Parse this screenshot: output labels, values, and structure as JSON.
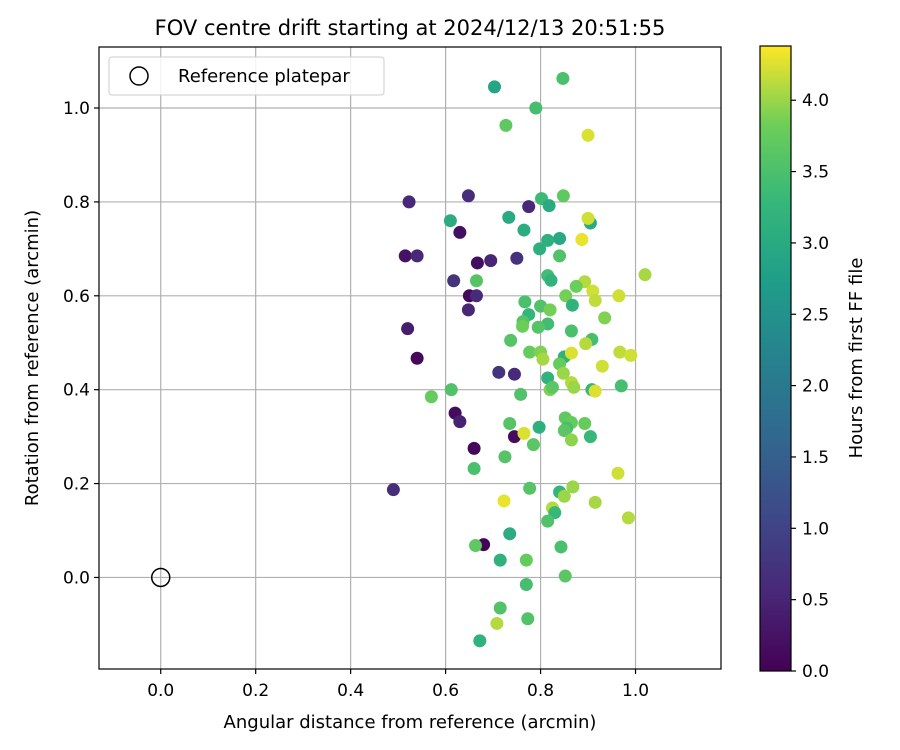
{
  "chart_data": {
    "type": "scatter",
    "title": "FOV centre drift starting at 2024/12/13 20:51:55",
    "xlabel": "Angular distance from reference (arcmin)",
    "ylabel": "Rotation from reference (arcmin)",
    "xlim": [
      -0.13,
      1.18
    ],
    "ylim": [
      -0.195,
      1.13
    ],
    "x_ticks": [
      "0.0",
      "0.2",
      "0.4",
      "0.6",
      "0.8",
      "1.0"
    ],
    "y_ticks": [
      "0.0",
      "0.2",
      "0.4",
      "0.6",
      "0.8",
      "1.0"
    ],
    "grid": true,
    "legend": {
      "placement": "top-left",
      "entries": [
        "Reference platepar"
      ]
    },
    "reference": {
      "x": 0.0,
      "y": 0.0
    },
    "colorbar": {
      "label": "Hours from first FF file",
      "range": [
        0.0,
        4.38
      ],
      "ticks": [
        "0.0",
        "0.5",
        "1.0",
        "1.5",
        "2.0",
        "2.5",
        "3.0",
        "3.5",
        "4.0"
      ],
      "colormap": "viridis"
    },
    "points": [
      {
        "x": 0.68,
        "y": 0.07,
        "c": 0.05
      },
      {
        "x": 0.66,
        "y": 0.275,
        "c": 0.1
      },
      {
        "x": 0.745,
        "y": 0.3,
        "c": 0.15
      },
      {
        "x": 0.62,
        "y": 0.35,
        "c": 0.15
      },
      {
        "x": 0.54,
        "y": 0.467,
        "c": 0.1
      },
      {
        "x": 0.52,
        "y": 0.53,
        "c": 0.4
      },
      {
        "x": 0.515,
        "y": 0.685,
        "c": 0.25
      },
      {
        "x": 0.54,
        "y": 0.685,
        "c": 0.55
      },
      {
        "x": 0.63,
        "y": 0.735,
        "c": 0.2
      },
      {
        "x": 0.65,
        "y": 0.6,
        "c": 0.1
      },
      {
        "x": 0.667,
        "y": 0.67,
        "c": 0.2
      },
      {
        "x": 0.695,
        "y": 0.675,
        "c": 0.5
      },
      {
        "x": 0.648,
        "y": 0.57,
        "c": 0.5
      },
      {
        "x": 0.665,
        "y": 0.6,
        "c": 0.6
      },
      {
        "x": 0.617,
        "y": 0.632,
        "c": 0.75
      },
      {
        "x": 0.648,
        "y": 0.813,
        "c": 0.65
      },
      {
        "x": 0.523,
        "y": 0.8,
        "c": 0.55
      },
      {
        "x": 0.775,
        "y": 0.79,
        "c": 0.55
      },
      {
        "x": 0.75,
        "y": 0.68,
        "c": 0.7
      },
      {
        "x": 0.712,
        "y": 0.437,
        "c": 0.75
      },
      {
        "x": 0.745,
        "y": 0.433,
        "c": 0.6
      },
      {
        "x": 0.63,
        "y": 0.332,
        "c": 0.45
      },
      {
        "x": 0.49,
        "y": 0.187,
        "c": 0.65
      },
      {
        "x": 0.703,
        "y": 1.045,
        "c": 2.9
      },
      {
        "x": 0.847,
        "y": 1.063,
        "c": 3.5
      },
      {
        "x": 0.79,
        "y": 1.0,
        "c": 3.45
      },
      {
        "x": 0.727,
        "y": 0.963,
        "c": 3.7
      },
      {
        "x": 0.9,
        "y": 0.942,
        "c": 4.25
      },
      {
        "x": 0.802,
        "y": 0.807,
        "c": 3.35
      },
      {
        "x": 0.848,
        "y": 0.813,
        "c": 3.7
      },
      {
        "x": 0.818,
        "y": 0.792,
        "c": 3.0
      },
      {
        "x": 0.61,
        "y": 0.76,
        "c": 3.05
      },
      {
        "x": 0.733,
        "y": 0.767,
        "c": 3.0
      },
      {
        "x": 0.905,
        "y": 0.755,
        "c": 3.0
      },
      {
        "x": 0.9,
        "y": 0.765,
        "c": 4.2
      },
      {
        "x": 0.765,
        "y": 0.74,
        "c": 3.05
      },
      {
        "x": 0.84,
        "y": 0.722,
        "c": 2.95
      },
      {
        "x": 0.815,
        "y": 0.718,
        "c": 3.1
      },
      {
        "x": 0.798,
        "y": 0.7,
        "c": 3.1
      },
      {
        "x": 0.887,
        "y": 0.72,
        "c": 4.3
      },
      {
        "x": 0.84,
        "y": 0.685,
        "c": 3.55
      },
      {
        "x": 0.665,
        "y": 0.632,
        "c": 3.6
      },
      {
        "x": 0.815,
        "y": 0.643,
        "c": 3.4
      },
      {
        "x": 0.822,
        "y": 0.633,
        "c": 3.2
      },
      {
        "x": 0.893,
        "y": 0.63,
        "c": 4.1
      },
      {
        "x": 0.875,
        "y": 0.62,
        "c": 3.8
      },
      {
        "x": 1.02,
        "y": 0.645,
        "c": 4.05
      },
      {
        "x": 0.91,
        "y": 0.61,
        "c": 4.2
      },
      {
        "x": 0.853,
        "y": 0.6,
        "c": 3.85
      },
      {
        "x": 0.965,
        "y": 0.6,
        "c": 4.2
      },
      {
        "x": 0.915,
        "y": 0.59,
        "c": 4.15
      },
      {
        "x": 0.767,
        "y": 0.587,
        "c": 3.5
      },
      {
        "x": 0.8,
        "y": 0.578,
        "c": 3.55
      },
      {
        "x": 0.867,
        "y": 0.58,
        "c": 3.2
      },
      {
        "x": 0.82,
        "y": 0.57,
        "c": 3.85
      },
      {
        "x": 0.775,
        "y": 0.56,
        "c": 3.25
      },
      {
        "x": 0.935,
        "y": 0.553,
        "c": 3.9
      },
      {
        "x": 0.763,
        "y": 0.545,
        "c": 3.6
      },
      {
        "x": 0.815,
        "y": 0.54,
        "c": 3.4
      },
      {
        "x": 0.762,
        "y": 0.535,
        "c": 3.8
      },
      {
        "x": 0.795,
        "y": 0.533,
        "c": 3.6
      },
      {
        "x": 0.865,
        "y": 0.525,
        "c": 3.5
      },
      {
        "x": 0.908,
        "y": 0.507,
        "c": 3.45
      },
      {
        "x": 0.737,
        "y": 0.505,
        "c": 3.6
      },
      {
        "x": 0.895,
        "y": 0.498,
        "c": 4.1
      },
      {
        "x": 0.777,
        "y": 0.48,
        "c": 3.75
      },
      {
        "x": 0.8,
        "y": 0.48,
        "c": 3.9
      },
      {
        "x": 0.85,
        "y": 0.47,
        "c": 3.15
      },
      {
        "x": 0.865,
        "y": 0.478,
        "c": 4.25
      },
      {
        "x": 0.805,
        "y": 0.465,
        "c": 4.05
      },
      {
        "x": 0.967,
        "y": 0.48,
        "c": 4.15
      },
      {
        "x": 0.99,
        "y": 0.473,
        "c": 4.2
      },
      {
        "x": 0.84,
        "y": 0.455,
        "c": 3.75
      },
      {
        "x": 0.93,
        "y": 0.45,
        "c": 4.2
      },
      {
        "x": 0.848,
        "y": 0.435,
        "c": 4.0
      },
      {
        "x": 0.815,
        "y": 0.425,
        "c": 3.15
      },
      {
        "x": 0.865,
        "y": 0.415,
        "c": 4.1
      },
      {
        "x": 0.87,
        "y": 0.405,
        "c": 4.0
      },
      {
        "x": 0.82,
        "y": 0.4,
        "c": 3.9
      },
      {
        "x": 0.825,
        "y": 0.405,
        "c": 3.65
      },
      {
        "x": 0.908,
        "y": 0.4,
        "c": 3.25
      },
      {
        "x": 0.915,
        "y": 0.397,
        "c": 4.25
      },
      {
        "x": 0.97,
        "y": 0.408,
        "c": 3.45
      },
      {
        "x": 0.612,
        "y": 0.4,
        "c": 3.55
      },
      {
        "x": 0.57,
        "y": 0.385,
        "c": 3.75
      },
      {
        "x": 0.758,
        "y": 0.39,
        "c": 3.55
      },
      {
        "x": 0.852,
        "y": 0.34,
        "c": 3.7
      },
      {
        "x": 0.865,
        "y": 0.33,
        "c": 3.75
      },
      {
        "x": 0.893,
        "y": 0.328,
        "c": 3.75
      },
      {
        "x": 0.735,
        "y": 0.328,
        "c": 3.6
      },
      {
        "x": 0.797,
        "y": 0.32,
        "c": 3.1
      },
      {
        "x": 0.855,
        "y": 0.318,
        "c": 3.45
      },
      {
        "x": 0.85,
        "y": 0.313,
        "c": 3.65
      },
      {
        "x": 0.765,
        "y": 0.307,
        "c": 4.25
      },
      {
        "x": 0.905,
        "y": 0.3,
        "c": 3.3
      },
      {
        "x": 0.865,
        "y": 0.293,
        "c": 3.95
      },
      {
        "x": 0.785,
        "y": 0.283,
        "c": 3.65
      },
      {
        "x": 0.725,
        "y": 0.257,
        "c": 3.6
      },
      {
        "x": 0.66,
        "y": 0.232,
        "c": 3.5
      },
      {
        "x": 0.963,
        "y": 0.222,
        "c": 4.2
      },
      {
        "x": 0.777,
        "y": 0.19,
        "c": 3.6
      },
      {
        "x": 0.868,
        "y": 0.193,
        "c": 4.0
      },
      {
        "x": 0.84,
        "y": 0.182,
        "c": 3.25
      },
      {
        "x": 0.85,
        "y": 0.173,
        "c": 4.0
      },
      {
        "x": 0.723,
        "y": 0.163,
        "c": 4.3
      },
      {
        "x": 0.915,
        "y": 0.16,
        "c": 4.05
      },
      {
        "x": 0.825,
        "y": 0.148,
        "c": 4.1
      },
      {
        "x": 0.83,
        "y": 0.138,
        "c": 3.3
      },
      {
        "x": 0.985,
        "y": 0.127,
        "c": 4.1
      },
      {
        "x": 0.815,
        "y": 0.12,
        "c": 3.55
      },
      {
        "x": 0.735,
        "y": 0.093,
        "c": 3.05
      },
      {
        "x": 0.663,
        "y": 0.068,
        "c": 3.7
      },
      {
        "x": 0.843,
        "y": 0.065,
        "c": 3.5
      },
      {
        "x": 0.715,
        "y": 0.037,
        "c": 3.15
      },
      {
        "x": 0.77,
        "y": 0.037,
        "c": 3.75
      },
      {
        "x": 0.852,
        "y": 0.003,
        "c": 3.65
      },
      {
        "x": 0.77,
        "y": -0.015,
        "c": 3.45
      },
      {
        "x": 0.715,
        "y": -0.065,
        "c": 3.55
      },
      {
        "x": 0.773,
        "y": -0.088,
        "c": 3.55
      },
      {
        "x": 0.708,
        "y": -0.098,
        "c": 4.1
      },
      {
        "x": 0.672,
        "y": -0.135,
        "c": 3.15
      }
    ]
  }
}
